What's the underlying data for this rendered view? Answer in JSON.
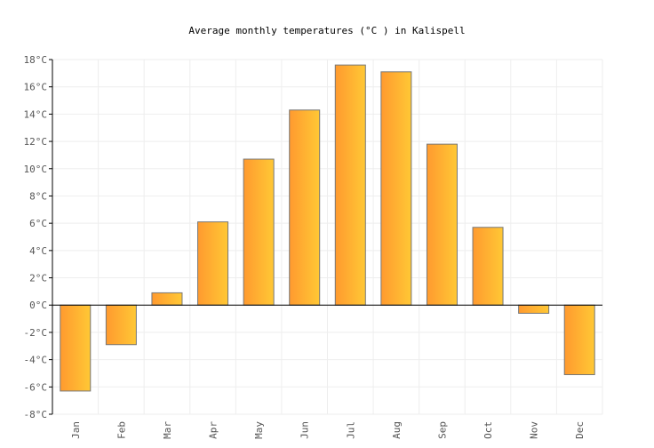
{
  "chart_data": {
    "type": "bar",
    "title": "Average monthly temperatures (°C ) in Kalispell",
    "categories": [
      "Jan",
      "Feb",
      "Mar",
      "Apr",
      "May",
      "Jun",
      "Jul",
      "Aug",
      "Sep",
      "Oct",
      "Nov",
      "Dec"
    ],
    "values": [
      -6.3,
      -2.9,
      0.9,
      6.1,
      10.7,
      14.3,
      17.6,
      17.1,
      11.8,
      5.7,
      -0.6,
      -5.1
    ],
    "ylim": [
      -8,
      18
    ],
    "yticks": [
      -8,
      -6,
      -4,
      -2,
      0,
      2,
      4,
      6,
      8,
      10,
      12,
      14,
      16,
      18
    ],
    "ytick_suffix": "°C",
    "grid": true,
    "colors": {
      "bar_left": "#ff9a2f",
      "bar_right": "#ffc835",
      "bar_stroke": "#777777",
      "grid": "#eeeeee"
    }
  }
}
